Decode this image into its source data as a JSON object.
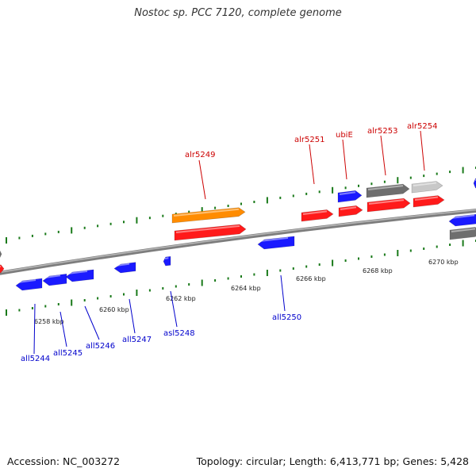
{
  "title": "Nostoc sp. PCC 7120, complete genome",
  "footer": {
    "accession": "Accession: NC_003272",
    "topology": "Topology: circular; Length: 6,413,771 bp; Genes: 5,428"
  },
  "colors": {
    "forward_gene": "#ff1a1a",
    "reverse_gene": "#1a1aff",
    "highlight_gene": "#ff8c00",
    "dark_gray_gene": "#6e6e6e",
    "light_gray_gene": "#c8c8c8",
    "forward_label": "#cc0000",
    "reverse_label": "#0000cc",
    "tick": "#1a7a1a",
    "backbone": "#8a8a8a"
  },
  "scale": {
    "labels": [
      "6258 kbp",
      "6260 kbp",
      "6262 kbp",
      "6264 kbp",
      "6266 kbp",
      "6268 kbp",
      "6270 kbp"
    ]
  },
  "gene_labels": {
    "forward": [
      "alr5249",
      "alr5251",
      "ubiE",
      "alr5253",
      "alr5254"
    ],
    "reverse": [
      "all5244",
      "all5245",
      "all5246",
      "all5247",
      "asl5248",
      "all5250"
    ]
  }
}
